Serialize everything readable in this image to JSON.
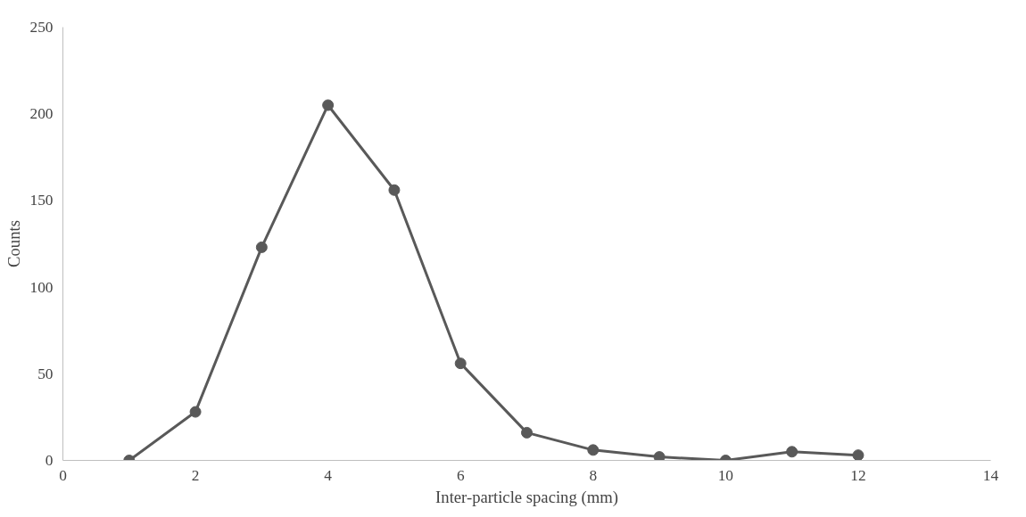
{
  "chart_data": {
    "type": "line",
    "xlabel": "Inter-particle spacing (mm)",
    "ylabel": "Counts",
    "x": [
      1,
      2,
      3,
      4,
      5,
      6,
      7,
      8,
      9,
      10,
      11,
      12
    ],
    "series": [
      {
        "color": "#595959",
        "values": [
          0,
          28,
          123,
          205,
          156,
          56,
          16,
          6,
          2,
          0,
          5,
          3
        ]
      }
    ],
    "xlim": [
      0,
      14
    ],
    "xticks": [
      0,
      2,
      4,
      6,
      8,
      10,
      12,
      14
    ],
    "ylim": [
      0,
      250
    ],
    "yticks": [
      0,
      50,
      100,
      150,
      200,
      250
    ],
    "marker": "circle",
    "grid": false
  }
}
